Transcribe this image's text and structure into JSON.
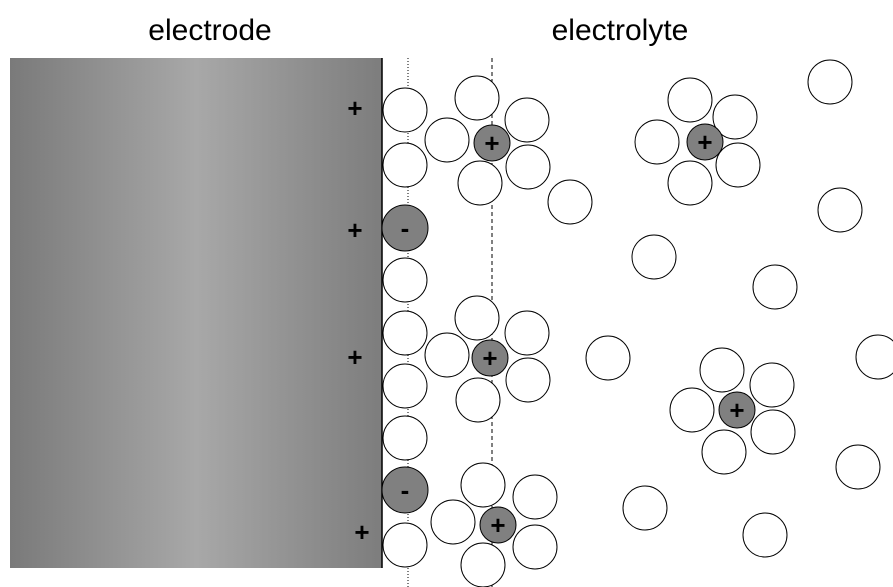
{
  "labels": {
    "electrode": "electrode",
    "electrolyte": "electrolyte"
  },
  "surface_charges": [
    "+",
    "+",
    "+",
    "+"
  ],
  "anions": [
    "-",
    "-"
  ],
  "cations": [
    "+",
    "+",
    "+",
    "+",
    "+"
  ]
}
